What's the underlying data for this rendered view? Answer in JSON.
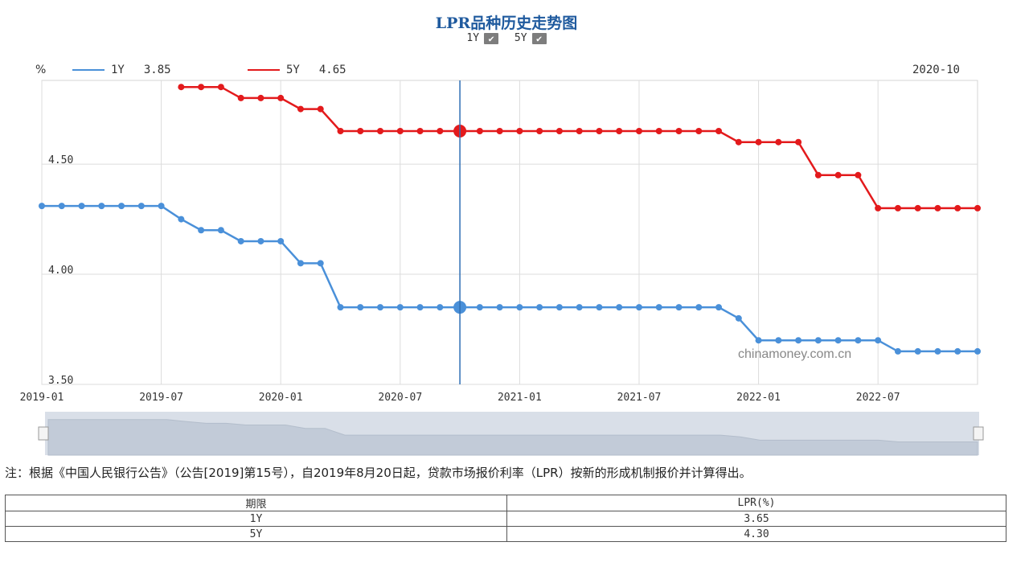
{
  "header": {
    "title": "LPR品种历史走势图",
    "toggle_1y": "1Y",
    "toggle_5y": "5Y",
    "check_mark": "✔"
  },
  "legend": {
    "unit": "%",
    "s1_name": "1Y",
    "s1_value": "3.85",
    "s2_name": "5Y",
    "s2_value": "4.65",
    "cursor_date": "2020-10"
  },
  "watermark": "chinamoney.com.cn",
  "note": "注：根据《中国人民银行公告》（公告[2019]第15号），自2019年8月20日起，贷款市场报价利率（LPR）按新的形成机制报价并计算得出。",
  "table": {
    "headers": [
      "期限",
      "LPR(%)"
    ],
    "rows": [
      [
        "1Y",
        "3.65"
      ],
      [
        "5Y",
        "4.30"
      ]
    ]
  },
  "chart_data": {
    "type": "line",
    "x_start": "2019-01",
    "x_end": "2022-12",
    "x_ticks": [
      "2019-01",
      "2019-07",
      "2020-01",
      "2020-07",
      "2021-01",
      "2021-07",
      "2022-01",
      "2022-07"
    ],
    "y_ticks": [
      "3.50",
      "4.00",
      "4.50"
    ],
    "ylim": [
      3.5,
      4.88
    ],
    "grid": true,
    "legend_position": "top-left",
    "highlight_date": "2020-10",
    "series": [
      {
        "name": "1Y",
        "color": "#4a90d9",
        "start": "2019-01",
        "values": [
          4.31,
          4.31,
          4.31,
          4.31,
          4.31,
          4.31,
          4.31,
          4.25,
          4.2,
          4.2,
          4.15,
          4.15,
          4.15,
          4.05,
          4.05,
          3.85,
          3.85,
          3.85,
          3.85,
          3.85,
          3.85,
          3.85,
          3.85,
          3.85,
          3.85,
          3.85,
          3.85,
          3.85,
          3.85,
          3.85,
          3.85,
          3.85,
          3.85,
          3.85,
          3.85,
          3.8,
          3.7,
          3.7,
          3.7,
          3.7,
          3.7,
          3.7,
          3.7,
          3.65,
          3.65,
          3.65,
          3.65,
          3.65
        ]
      },
      {
        "name": "5Y",
        "color": "#e31a1c",
        "start": "2019-08",
        "values": [
          4.85,
          4.85,
          4.85,
          4.8,
          4.8,
          4.8,
          4.75,
          4.75,
          4.65,
          4.65,
          4.65,
          4.65,
          4.65,
          4.65,
          4.65,
          4.65,
          4.65,
          4.65,
          4.65,
          4.65,
          4.65,
          4.65,
          4.65,
          4.65,
          4.65,
          4.65,
          4.65,
          4.65,
          4.6,
          4.6,
          4.6,
          4.6,
          4.45,
          4.45,
          4.45,
          4.3,
          4.3,
          4.3,
          4.3,
          4.3,
          4.3
        ]
      }
    ]
  }
}
